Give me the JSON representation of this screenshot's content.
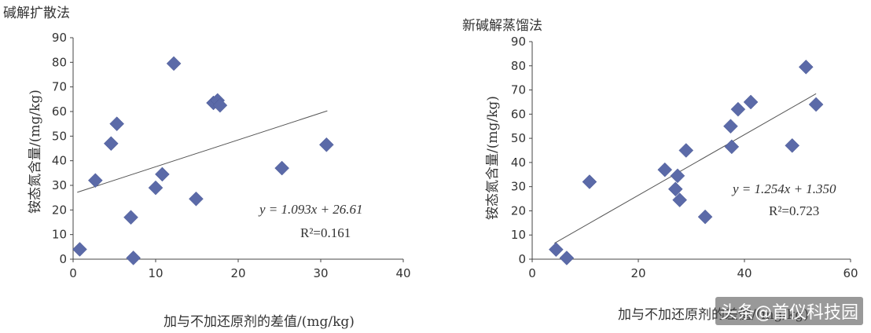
{
  "chart_data": [
    {
      "type": "scatter",
      "title": "碱解扩散法",
      "xlabel": "加与不加还原剂的差值/(mg/kg)",
      "ylabel": "铵态氮含量/(mg/kg)",
      "xlim": [
        0,
        40
      ],
      "ylim": [
        0,
        90
      ],
      "xticks": [
        0,
        10,
        20,
        30,
        40
      ],
      "yticks": [
        0,
        10,
        20,
        30,
        40,
        50,
        60,
        70,
        80,
        90
      ],
      "grid": false,
      "marker_color": "#5b6aa8",
      "x": [
        0.8,
        2.7,
        4.6,
        5.3,
        7.0,
        7.3,
        10.0,
        10.8,
        12.2,
        14.9,
        17.0,
        17.5,
        17.8,
        25.3,
        30.7
      ],
      "y": [
        4,
        32,
        47,
        55,
        17,
        0.5,
        29,
        34.5,
        79.5,
        24.5,
        63.5,
        64.5,
        62.5,
        37,
        46.5
      ],
      "trendline": {
        "slope": 1.093,
        "intercept": 26.61,
        "x_range": [
          0.5,
          30.8
        ]
      },
      "equation": "y = 1.093x + 26.61",
      "r2": "R²=0.161"
    },
    {
      "type": "scatter",
      "title": "新碱解蒸馏法",
      "xlabel": "加与不加还原剂的差值/(mg/kg)",
      "ylabel": "铵态氮含量/(mg/kg)",
      "xlim": [
        0,
        60
      ],
      "ylim": [
        0,
        90
      ],
      "xticks": [
        0,
        20,
        40,
        60
      ],
      "yticks": [
        0,
        10,
        20,
        30,
        40,
        50,
        60,
        70,
        80,
        90
      ],
      "grid": false,
      "marker_color": "#5b6aa8",
      "x": [
        4.5,
        6.5,
        10.8,
        25.0,
        27.0,
        27.4,
        27.8,
        29.0,
        32.6,
        37.4,
        37.6,
        38.8,
        41.2,
        49.0,
        51.6,
        53.5
      ],
      "y": [
        4,
        0.5,
        32,
        37,
        29,
        34.5,
        24.5,
        45,
        17.5,
        55,
        46.5,
        62,
        65,
        47,
        79.5,
        64
      ],
      "trendline": {
        "slope": 1.254,
        "intercept": 1.35,
        "x_range": [
          4.2,
          53.5
        ]
      },
      "equation": "y = 1.254x + 1.350",
      "r2": "R²=0.723"
    }
  ],
  "watermark": "头条@首仪科技园"
}
